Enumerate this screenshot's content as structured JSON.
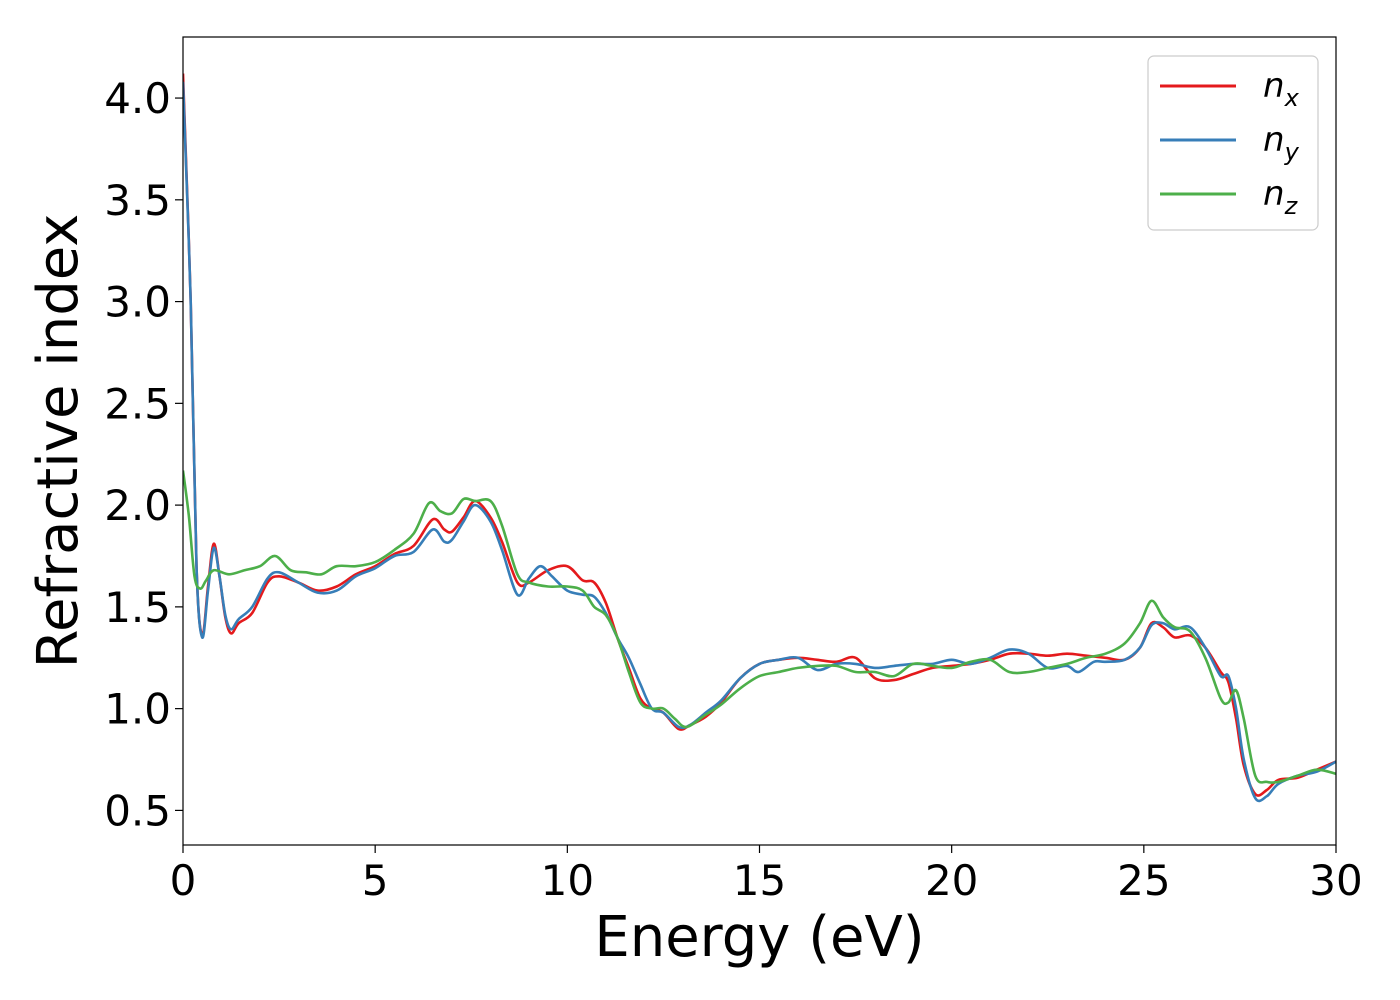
{
  "chart_data": {
    "type": "line",
    "xlabel": "Energy (eV)",
    "ylabel": "Refractive index",
    "xlim": [
      0,
      30
    ],
    "ylim": [
      0.33,
      4.3
    ],
    "xticks": [
      "0",
      "5",
      "10",
      "15",
      "20",
      "25",
      "30"
    ],
    "xtick_values": [
      0,
      5,
      10,
      15,
      20,
      25,
      30
    ],
    "yticks": [
      "0.5",
      "1.0",
      "1.5",
      "2.0",
      "2.5",
      "3.0",
      "3.5",
      "4.0"
    ],
    "ytick_values": [
      0.5,
      1.0,
      1.5,
      2.0,
      2.5,
      3.0,
      3.5,
      4.0
    ],
    "grid": false,
    "legend_position": "top-right",
    "series": [
      {
        "name": "n",
        "sub": "x",
        "color": "#e41a1c",
        "points": [
          [
            0,
            4.12
          ],
          [
            0.2,
            3.0
          ],
          [
            0.35,
            1.7
          ],
          [
            0.5,
            1.36
          ],
          [
            0.65,
            1.6
          ],
          [
            0.8,
            1.81
          ],
          [
            0.95,
            1.65
          ],
          [
            1.1,
            1.45
          ],
          [
            1.25,
            1.37
          ],
          [
            1.45,
            1.42
          ],
          [
            1.8,
            1.47
          ],
          [
            2.2,
            1.62
          ],
          [
            2.5,
            1.65
          ],
          [
            3.0,
            1.62
          ],
          [
            3.5,
            1.58
          ],
          [
            4.0,
            1.6
          ],
          [
            4.5,
            1.66
          ],
          [
            5.0,
            1.7
          ],
          [
            5.5,
            1.76
          ],
          [
            6.0,
            1.8
          ],
          [
            6.5,
            1.93
          ],
          [
            6.8,
            1.88
          ],
          [
            7.0,
            1.87
          ],
          [
            7.3,
            1.94
          ],
          [
            7.6,
            2.02
          ],
          [
            8.0,
            1.94
          ],
          [
            8.3,
            1.82
          ],
          [
            8.7,
            1.62
          ],
          [
            9.0,
            1.62
          ],
          [
            9.5,
            1.68
          ],
          [
            10.0,
            1.7
          ],
          [
            10.4,
            1.63
          ],
          [
            10.7,
            1.62
          ],
          [
            11.0,
            1.52
          ],
          [
            11.3,
            1.35
          ],
          [
            11.6,
            1.2
          ],
          [
            11.9,
            1.05
          ],
          [
            12.2,
            1.0
          ],
          [
            12.5,
            0.98
          ],
          [
            12.9,
            0.9
          ],
          [
            13.2,
            0.92
          ],
          [
            13.6,
            0.96
          ],
          [
            14.0,
            1.03
          ],
          [
            14.5,
            1.15
          ],
          [
            15.0,
            1.22
          ],
          [
            15.5,
            1.24
          ],
          [
            16.0,
            1.25
          ],
          [
            16.5,
            1.24
          ],
          [
            17.0,
            1.23
          ],
          [
            17.5,
            1.25
          ],
          [
            18.0,
            1.15
          ],
          [
            18.5,
            1.14
          ],
          [
            19.0,
            1.17
          ],
          [
            19.5,
            1.2
          ],
          [
            20.0,
            1.21
          ],
          [
            20.5,
            1.22
          ],
          [
            21.0,
            1.24
          ],
          [
            21.5,
            1.27
          ],
          [
            22.0,
            1.27
          ],
          [
            22.5,
            1.26
          ],
          [
            23.0,
            1.27
          ],
          [
            23.5,
            1.26
          ],
          [
            24.0,
            1.25
          ],
          [
            24.5,
            1.24
          ],
          [
            24.9,
            1.3
          ],
          [
            25.2,
            1.42
          ],
          [
            25.5,
            1.4
          ],
          [
            25.8,
            1.35
          ],
          [
            26.2,
            1.36
          ],
          [
            26.6,
            1.3
          ],
          [
            27.0,
            1.18
          ],
          [
            27.2,
            1.13
          ],
          [
            27.4,
            0.95
          ],
          [
            27.6,
            0.72
          ],
          [
            27.9,
            0.58
          ],
          [
            28.2,
            0.6
          ],
          [
            28.5,
            0.65
          ],
          [
            29.0,
            0.66
          ],
          [
            29.5,
            0.7
          ],
          [
            30.0,
            0.74
          ]
        ]
      },
      {
        "name": "n",
        "sub": "y",
        "color": "#377eb8",
        "points": [
          [
            0,
            4.08
          ],
          [
            0.2,
            3.0
          ],
          [
            0.35,
            1.7
          ],
          [
            0.5,
            1.35
          ],
          [
            0.65,
            1.58
          ],
          [
            0.8,
            1.79
          ],
          [
            0.95,
            1.65
          ],
          [
            1.1,
            1.46
          ],
          [
            1.25,
            1.39
          ],
          [
            1.45,
            1.44
          ],
          [
            1.8,
            1.5
          ],
          [
            2.2,
            1.64
          ],
          [
            2.5,
            1.67
          ],
          [
            3.0,
            1.62
          ],
          [
            3.5,
            1.57
          ],
          [
            4.0,
            1.58
          ],
          [
            4.5,
            1.65
          ],
          [
            5.0,
            1.69
          ],
          [
            5.5,
            1.75
          ],
          [
            6.0,
            1.77
          ],
          [
            6.5,
            1.88
          ],
          [
            6.8,
            1.82
          ],
          [
            7.0,
            1.83
          ],
          [
            7.3,
            1.92
          ],
          [
            7.6,
            2.0
          ],
          [
            8.0,
            1.92
          ],
          [
            8.3,
            1.78
          ],
          [
            8.7,
            1.56
          ],
          [
            9.0,
            1.64
          ],
          [
            9.3,
            1.7
          ],
          [
            9.6,
            1.65
          ],
          [
            10.0,
            1.58
          ],
          [
            10.4,
            1.56
          ],
          [
            10.7,
            1.55
          ],
          [
            11.0,
            1.47
          ],
          [
            11.3,
            1.35
          ],
          [
            11.6,
            1.25
          ],
          [
            11.9,
            1.12
          ],
          [
            12.2,
            1.0
          ],
          [
            12.5,
            0.98
          ],
          [
            12.9,
            0.91
          ],
          [
            13.2,
            0.92
          ],
          [
            13.6,
            0.98
          ],
          [
            14.0,
            1.04
          ],
          [
            14.5,
            1.15
          ],
          [
            15.0,
            1.22
          ],
          [
            15.5,
            1.24
          ],
          [
            16.0,
            1.25
          ],
          [
            16.5,
            1.19
          ],
          [
            17.0,
            1.22
          ],
          [
            17.5,
            1.22
          ],
          [
            18.0,
            1.2
          ],
          [
            18.5,
            1.21
          ],
          [
            19.0,
            1.22
          ],
          [
            19.5,
            1.22
          ],
          [
            20.0,
            1.24
          ],
          [
            20.5,
            1.22
          ],
          [
            21.0,
            1.25
          ],
          [
            21.5,
            1.29
          ],
          [
            22.0,
            1.27
          ],
          [
            22.5,
            1.2
          ],
          [
            23.0,
            1.21
          ],
          [
            23.3,
            1.18
          ],
          [
            23.7,
            1.23
          ],
          [
            24.0,
            1.23
          ],
          [
            24.5,
            1.24
          ],
          [
            24.9,
            1.3
          ],
          [
            25.2,
            1.41
          ],
          [
            25.5,
            1.42
          ],
          [
            25.8,
            1.39
          ],
          [
            26.2,
            1.4
          ],
          [
            26.6,
            1.3
          ],
          [
            27.0,
            1.16
          ],
          [
            27.2,
            1.16
          ],
          [
            27.4,
            1.0
          ],
          [
            27.6,
            0.75
          ],
          [
            27.9,
            0.56
          ],
          [
            28.2,
            0.57
          ],
          [
            28.5,
            0.63
          ],
          [
            29.0,
            0.67
          ],
          [
            29.5,
            0.69
          ],
          [
            30.0,
            0.74
          ]
        ]
      },
      {
        "name": "n",
        "sub": "z",
        "color": "#4daf4a",
        "points": [
          [
            0,
            2.17
          ],
          [
            0.15,
            1.95
          ],
          [
            0.3,
            1.65
          ],
          [
            0.45,
            1.59
          ],
          [
            0.6,
            1.63
          ],
          [
            0.8,
            1.68
          ],
          [
            1.2,
            1.66
          ],
          [
            1.6,
            1.68
          ],
          [
            2.0,
            1.7
          ],
          [
            2.4,
            1.75
          ],
          [
            2.8,
            1.68
          ],
          [
            3.2,
            1.67
          ],
          [
            3.6,
            1.66
          ],
          [
            4.0,
            1.7
          ],
          [
            4.5,
            1.7
          ],
          [
            5.0,
            1.72
          ],
          [
            5.5,
            1.78
          ],
          [
            6.0,
            1.86
          ],
          [
            6.4,
            2.01
          ],
          [
            6.7,
            1.97
          ],
          [
            7.0,
            1.96
          ],
          [
            7.3,
            2.03
          ],
          [
            7.6,
            2.02
          ],
          [
            8.0,
            2.02
          ],
          [
            8.3,
            1.9
          ],
          [
            8.7,
            1.66
          ],
          [
            9.0,
            1.62
          ],
          [
            9.5,
            1.6
          ],
          [
            10.0,
            1.6
          ],
          [
            10.4,
            1.58
          ],
          [
            10.7,
            1.5
          ],
          [
            11.0,
            1.46
          ],
          [
            11.3,
            1.35
          ],
          [
            11.6,
            1.18
          ],
          [
            11.9,
            1.03
          ],
          [
            12.2,
            1.0
          ],
          [
            12.5,
            1.0
          ],
          [
            12.8,
            0.95
          ],
          [
            13.1,
            0.91
          ],
          [
            13.6,
            0.97
          ],
          [
            14.0,
            1.02
          ],
          [
            14.5,
            1.1
          ],
          [
            15.0,
            1.16
          ],
          [
            15.5,
            1.18
          ],
          [
            16.0,
            1.2
          ],
          [
            16.5,
            1.21
          ],
          [
            17.0,
            1.21
          ],
          [
            17.5,
            1.18
          ],
          [
            18.0,
            1.18
          ],
          [
            18.5,
            1.16
          ],
          [
            19.0,
            1.22
          ],
          [
            19.5,
            1.21
          ],
          [
            20.0,
            1.2
          ],
          [
            20.5,
            1.23
          ],
          [
            21.0,
            1.24
          ],
          [
            21.5,
            1.18
          ],
          [
            22.0,
            1.18
          ],
          [
            22.5,
            1.2
          ],
          [
            23.0,
            1.22
          ],
          [
            23.5,
            1.25
          ],
          [
            24.0,
            1.27
          ],
          [
            24.5,
            1.32
          ],
          [
            24.9,
            1.42
          ],
          [
            25.2,
            1.53
          ],
          [
            25.5,
            1.45
          ],
          [
            25.8,
            1.4
          ],
          [
            26.2,
            1.38
          ],
          [
            26.6,
            1.25
          ],
          [
            27.0,
            1.05
          ],
          [
            27.2,
            1.03
          ],
          [
            27.4,
            1.09
          ],
          [
            27.6,
            0.95
          ],
          [
            27.9,
            0.67
          ],
          [
            28.2,
            0.64
          ],
          [
            28.5,
            0.64
          ],
          [
            29.0,
            0.67
          ],
          [
            29.5,
            0.7
          ],
          [
            30.0,
            0.68
          ]
        ]
      }
    ]
  }
}
